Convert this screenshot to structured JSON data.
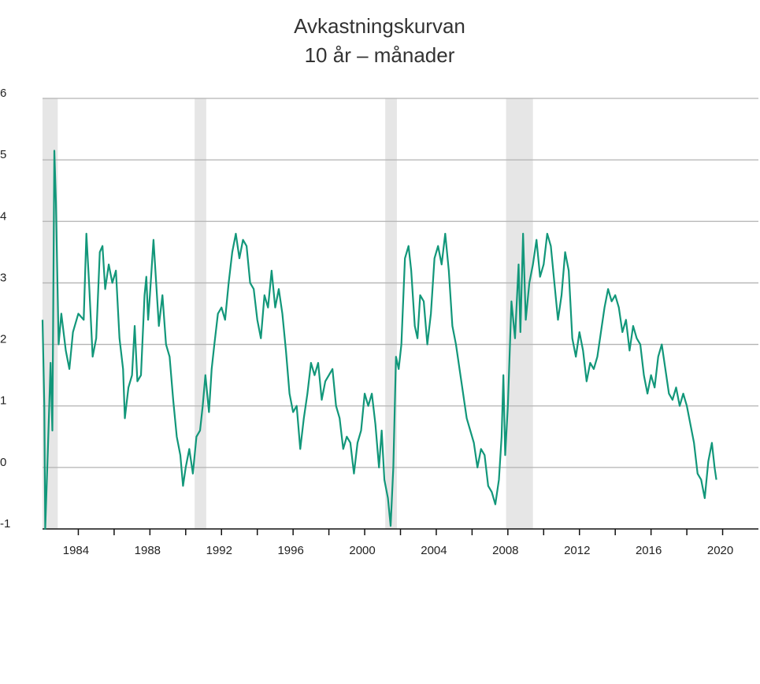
{
  "chart_data": {
    "type": "line",
    "title": "Avkastningskurvan",
    "subtitle": "10 år – månader",
    "xlim": [
      1982,
      2022
    ],
    "xticks": [
      1984,
      1988,
      1992,
      1996,
      2000,
      2004,
      2008,
      2012,
      2016,
      2020
    ],
    "xminorticks": [
      1986,
      1990,
      1994,
      1998,
      2002,
      2006,
      2010,
      2014,
      2018
    ],
    "ylim": [
      -1,
      6
    ],
    "yticks": [
      -1,
      0,
      1,
      2,
      3,
      4,
      5,
      6
    ],
    "grid": true,
    "shaded_periods": [
      [
        1982.0,
        1982.85
      ],
      [
        1990.5,
        1991.15
      ],
      [
        2001.15,
        2001.8
      ],
      [
        2007.9,
        2009.4
      ]
    ],
    "shade_color": "#e6e6e6",
    "series": [
      {
        "color": "#12977a",
        "x": [
          1982.0,
          1982.1,
          1982.15,
          1982.3,
          1982.45,
          1982.55,
          1982.66,
          1982.75,
          1982.9,
          1983.05,
          1983.3,
          1983.5,
          1983.7,
          1984.0,
          1984.3,
          1984.45,
          1984.6,
          1984.8,
          1985.0,
          1985.2,
          1985.35,
          1985.5,
          1985.7,
          1985.9,
          1986.1,
          1986.3,
          1986.5,
          1986.6,
          1986.8,
          1987.0,
          1987.15,
          1987.3,
          1987.5,
          1987.7,
          1987.8,
          1987.9,
          1988.0,
          1988.2,
          1988.35,
          1988.5,
          1988.7,
          1988.9,
          1989.1,
          1989.3,
          1989.5,
          1989.7,
          1989.85,
          1990.0,
          1990.2,
          1990.4,
          1990.6,
          1990.8,
          1990.95,
          1991.1,
          1991.3,
          1991.45,
          1991.6,
          1991.8,
          1992.0,
          1992.2,
          1992.4,
          1992.6,
          1992.8,
          1993.0,
          1993.2,
          1993.4,
          1993.6,
          1993.8,
          1994.0,
          1994.2,
          1994.4,
          1994.6,
          1994.8,
          1995.0,
          1995.2,
          1995.4,
          1995.6,
          1995.8,
          1996.0,
          1996.2,
          1996.4,
          1996.6,
          1996.8,
          1997.0,
          1997.2,
          1997.4,
          1997.6,
          1997.8,
          1998.0,
          1998.2,
          1998.4,
          1998.6,
          1998.8,
          1999.0,
          1999.2,
          1999.4,
          1999.6,
          1999.8,
          2000.0,
          2000.2,
          2000.4,
          2000.6,
          2000.8,
          2000.95,
          2001.1,
          2001.3,
          2001.45,
          2001.6,
          2001.75,
          2001.9,
          2002.05,
          2002.25,
          2002.45,
          2002.6,
          2002.8,
          2002.95,
          2003.1,
          2003.3,
          2003.5,
          2003.7,
          2003.9,
          2004.1,
          2004.3,
          2004.5,
          2004.7,
          2004.9,
          2005.1,
          2005.3,
          2005.5,
          2005.7,
          2005.9,
          2006.1,
          2006.3,
          2006.5,
          2006.7,
          2006.9,
          2007.1,
          2007.3,
          2007.5,
          2007.65,
          2007.75,
          2007.85,
          2008.0,
          2008.2,
          2008.4,
          2008.6,
          2008.7,
          2008.85,
          2009.0,
          2009.2,
          2009.4,
          2009.6,
          2009.8,
          2010.0,
          2010.2,
          2010.4,
          2010.6,
          2010.8,
          2011.0,
          2011.2,
          2011.4,
          2011.6,
          2011.8,
          2012.0,
          2012.2,
          2012.4,
          2012.6,
          2012.8,
          2013.0,
          2013.2,
          2013.4,
          2013.6,
          2013.8,
          2014.0,
          2014.2,
          2014.4,
          2014.6,
          2014.8,
          2015.0,
          2015.2,
          2015.4,
          2015.6,
          2015.8,
          2016.0,
          2016.2,
          2016.4,
          2016.6,
          2016.8,
          2017.0,
          2017.2,
          2017.4,
          2017.6,
          2017.8,
          2018.0,
          2018.2,
          2018.4,
          2018.6,
          2018.8,
          2019.0,
          2019.2,
          2019.4,
          2019.55,
          2019.65
        ],
        "values": [
          2.4,
          1.0,
          -1.0,
          0.3,
          1.7,
          0.6,
          5.15,
          4.3,
          2.0,
          2.5,
          1.9,
          1.6,
          2.2,
          2.5,
          2.4,
          3.8,
          3.0,
          1.8,
          2.1,
          3.5,
          3.6,
          2.9,
          3.3,
          3.0,
          3.2,
          2.1,
          1.6,
          0.8,
          1.3,
          1.5,
          2.3,
          1.4,
          1.5,
          2.8,
          3.1,
          2.4,
          2.8,
          3.7,
          3.0,
          2.3,
          2.8,
          2.0,
          1.8,
          1.1,
          0.5,
          0.2,
          -0.3,
          0.0,
          0.3,
          -0.1,
          0.5,
          0.6,
          1.0,
          1.5,
          0.9,
          1.6,
          2.0,
          2.5,
          2.6,
          2.4,
          3.0,
          3.5,
          3.8,
          3.4,
          3.7,
          3.6,
          3.0,
          2.9,
          2.4,
          2.1,
          2.8,
          2.6,
          3.2,
          2.6,
          2.9,
          2.5,
          1.9,
          1.2,
          0.9,
          1.0,
          0.3,
          0.8,
          1.2,
          1.7,
          1.5,
          1.7,
          1.1,
          1.4,
          1.5,
          1.6,
          1.0,
          0.8,
          0.3,
          0.5,
          0.4,
          -0.1,
          0.4,
          0.6,
          1.2,
          1.0,
          1.2,
          0.7,
          0.0,
          0.6,
          -0.2,
          -0.5,
          -0.95,
          0.0,
          1.8,
          1.6,
          2.0,
          3.4,
          3.6,
          3.2,
          2.3,
          2.1,
          2.8,
          2.7,
          2.0,
          2.5,
          3.4,
          3.6,
          3.3,
          3.8,
          3.2,
          2.3,
          2.0,
          1.6,
          1.2,
          0.8,
          0.6,
          0.4,
          0.0,
          0.3,
          0.2,
          -0.3,
          -0.4,
          -0.6,
          -0.2,
          0.5,
          1.5,
          0.2,
          1.0,
          2.7,
          2.1,
          3.3,
          2.2,
          3.8,
          2.4,
          3.0,
          3.3,
          3.7,
          3.1,
          3.3,
          3.8,
          3.6,
          3.0,
          2.4,
          2.8,
          3.5,
          3.2,
          2.1,
          1.8,
          2.2,
          1.9,
          1.4,
          1.7,
          1.6,
          1.8,
          2.2,
          2.6,
          2.9,
          2.7,
          2.8,
          2.6,
          2.2,
          2.4,
          1.9,
          2.3,
          2.1,
          2.0,
          1.5,
          1.2,
          1.5,
          1.3,
          1.8,
          2.0,
          1.6,
          1.2,
          1.1,
          1.3,
          1.0,
          1.2,
          1.0,
          0.7,
          0.4,
          -0.1,
          -0.2,
          -0.5,
          0.1,
          0.4,
          0.0,
          -0.2
        ]
      }
    ]
  }
}
